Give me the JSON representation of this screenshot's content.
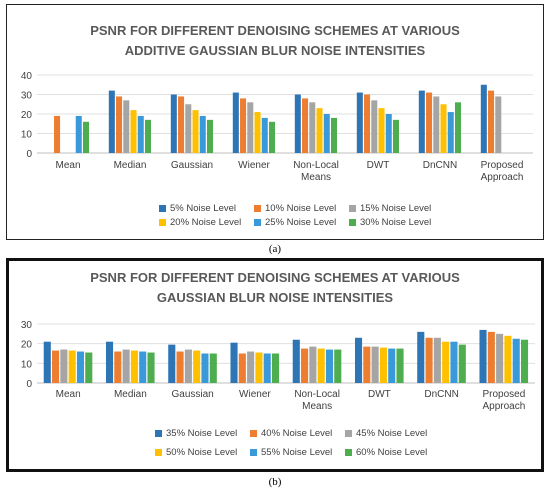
{
  "panel_a": {
    "caption": "(a)"
  },
  "panel_b": {
    "caption": "(b)"
  },
  "chart_data": [
    {
      "type": "bar",
      "title_lines": [
        "PSNR FOR DIFFERENT DENOISING SCHEMES AT VARIOUS",
        "ADDITIVE GAUSSIAN BLUR NOISE INTENSITIES"
      ],
      "categories": [
        "Mean",
        "Median",
        "Gaussian",
        "Wiener",
        "Non-Local Means",
        "DWT",
        "DnCNN",
        "Proposed Approach"
      ],
      "category_label_lines": [
        [
          "Mean"
        ],
        [
          "Median"
        ],
        [
          "Gaussian"
        ],
        [
          "Wiener"
        ],
        [
          "Non-Local",
          "Means"
        ],
        [
          "DWT"
        ],
        [
          "DnCNN"
        ],
        [
          "Proposed",
          "Approach"
        ]
      ],
      "ylim": [
        0,
        40
      ],
      "yticks": [
        "0",
        "10",
        "20",
        "30",
        "40"
      ],
      "grid": true,
      "legend_position": "bottom",
      "colors": [
        "#2e75b6",
        "#ed7d31",
        "#a5a5a5",
        "#ffc000",
        "#3a9ad9",
        "#4ead4e"
      ],
      "series": [
        {
          "name": "5% Noise Level",
          "values": [
            0,
            32,
            30,
            31,
            30,
            31,
            32,
            35
          ]
        },
        {
          "name": "10% Noise Level",
          "values": [
            19,
            29,
            29,
            28,
            28,
            30,
            31,
            32
          ]
        },
        {
          "name": "15% Noise Level",
          "values": [
            0,
            27,
            25,
            26,
            26,
            27,
            29,
            29
          ]
        },
        {
          "name": "20% Noise Level",
          "values": [
            0,
            22,
            22,
            21,
            23,
            23,
            25,
            0
          ]
        },
        {
          "name": "25% Noise Level",
          "values": [
            19,
            19,
            19,
            18,
            20,
            20,
            21,
            0
          ]
        },
        {
          "name": "30% Noise Level",
          "values": [
            16,
            17,
            17,
            16,
            18,
            17,
            26,
            0
          ]
        }
      ]
    },
    {
      "type": "bar",
      "title_lines": [
        "PSNR FOR DIFFERENT DENOISING SCHEMES AT VARIOUS",
        "GAUSSIAN BLUR NOISE INTENSITIES"
      ],
      "categories": [
        "Mean",
        "Median",
        "Gaussian",
        "Wiener",
        "Non-Local Means",
        "DWT",
        "DnCNN",
        "Proposed Approach"
      ],
      "category_label_lines": [
        [
          "Mean"
        ],
        [
          "Median"
        ],
        [
          "Gaussian"
        ],
        [
          "Wiener"
        ],
        [
          "Non-Local",
          "Means"
        ],
        [
          "DWT"
        ],
        [
          "DnCNN"
        ],
        [
          "Proposed",
          "Approach"
        ]
      ],
      "ylim": [
        0,
        30
      ],
      "yticks": [
        "0",
        "10",
        "20",
        "30"
      ],
      "grid": true,
      "legend_position": "bottom",
      "colors": [
        "#2e75b6",
        "#ed7d31",
        "#a5a5a5",
        "#ffc000",
        "#3a9ad9",
        "#4ead4e"
      ],
      "series": [
        {
          "name": "35% Noise Level",
          "values": [
            21,
            21,
            19.5,
            20.5,
            22,
            23,
            26,
            27
          ]
        },
        {
          "name": "40% Noise Level",
          "values": [
            16.5,
            16,
            16,
            15,
            17.5,
            18.5,
            23,
            26
          ]
        },
        {
          "name": "45% Noise Level",
          "values": [
            17,
            17,
            17,
            16,
            18.5,
            18.5,
            23,
            25
          ]
        },
        {
          "name": "50% Noise Level",
          "values": [
            16.5,
            16.5,
            16.5,
            15.5,
            17.5,
            18,
            21,
            24
          ]
        },
        {
          "name": "55% Noise Level",
          "values": [
            16,
            16,
            15,
            15,
            17,
            17.5,
            21,
            22.5
          ]
        },
        {
          "name": "60% Noise Level",
          "values": [
            15.5,
            15.5,
            15,
            15,
            17,
            17.5,
            19.5,
            22
          ]
        }
      ]
    }
  ]
}
